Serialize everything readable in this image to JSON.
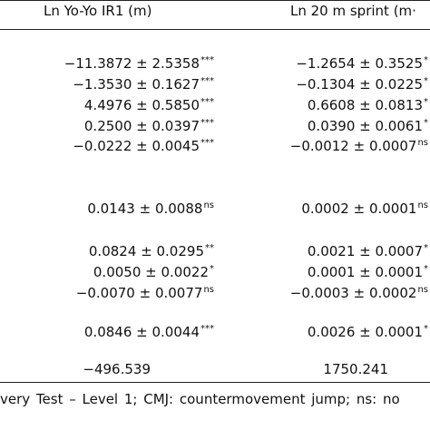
{
  "headers": {
    "col1": "Ln Yo-Yo IR1 (m)",
    "col2": "Ln 20 m sprint (m·"
  },
  "rows": [
    {
      "c1": {
        "est": "−11.3872",
        "se": "2.5358",
        "sig": "***"
      },
      "c2": {
        "est": "−1.2654",
        "se": "0.3525",
        "sig": "*"
      }
    },
    {
      "c1": {
        "est": "−1.3530",
        "se": "0.1627",
        "sig": "***"
      },
      "c2": {
        "est": "−0.1304",
        "se": "0.0225",
        "sig": "*"
      }
    },
    {
      "c1": {
        "est": "4.4976",
        "se": "0.5850",
        "sig": "***"
      },
      "c2": {
        "est": "0.6608",
        "se": "0.0813",
        "sig": "*"
      }
    },
    {
      "c1": {
        "est": "0.2500",
        "se": "0.0397",
        "sig": "***"
      },
      "c2": {
        "est": "0.0390",
        "se": "0.0061",
        "sig": "*"
      }
    },
    {
      "c1": {
        "est": "−0.0222",
        "se": "0.0045",
        "sig": "***"
      },
      "c2": {
        "est": "−0.0012",
        "se": "0.0007",
        "sig": "ns"
      }
    },
    {
      "c1": {
        "est": "0.0143",
        "se": "0.0088",
        "sig": "ns"
      },
      "c2": {
        "est": "0.0002",
        "se": "0.0001",
        "sig": "ns"
      }
    },
    {
      "c1": {
        "est": "0.0824",
        "se": "0.0295",
        "sig": "**"
      },
      "c2": {
        "est": "0.0021",
        "se": "0.0007",
        "sig": "*"
      }
    },
    {
      "c1": {
        "est": "0.0050",
        "se": "0.0022",
        "sig": "*"
      },
      "c2": {
        "est": "0.0001",
        "se": "0.0001",
        "sig": "*"
      }
    },
    {
      "c1": {
        "est": "−0.0070",
        "se": "0.0077",
        "sig": "ns"
      },
      "c2": {
        "est": "−0.0003",
        "se": "0.0002",
        "sig": "ns"
      }
    },
    {
      "c1": {
        "est": "0.0846",
        "se": "0.0044",
        "sig": "***"
      },
      "c2": {
        "est": "0.0026",
        "se": "0.0001",
        "sig": "*"
      }
    }
  ],
  "loglik": {
    "c1": "−496.539",
    "c2": "1750.241"
  },
  "footnote": "very Test – Level 1; CMJ: countermovement jump; ns: no"
}
